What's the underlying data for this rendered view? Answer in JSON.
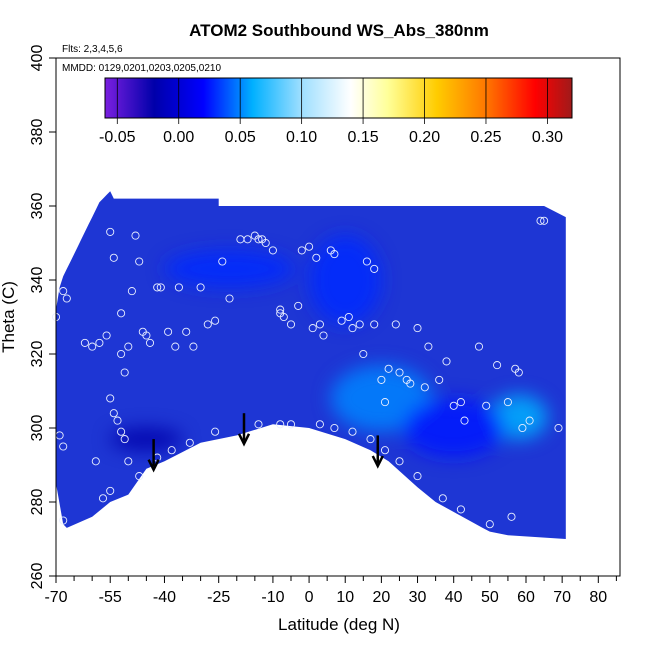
{
  "chart_data": {
    "type": "heatmap",
    "title": "ATOM2 Southbound WS_Abs_380nm",
    "subtitle_flights": "Flts: 2,3,4,5,6",
    "subtitle_dates": "MMDD: 0129,0201,0203,0205,0210",
    "xlabel": "Latitude (deg N)",
    "ylabel": "Theta (C)",
    "xlim": [
      -70,
      86
    ],
    "ylim": [
      260,
      400
    ],
    "x_ticks": [
      -70,
      -55,
      -40,
      -25,
      -10,
      0,
      10,
      20,
      30,
      40,
      50,
      60,
      70,
      80
    ],
    "x_minor_ticks": [
      -65,
      -60,
      -50,
      -45,
      -35,
      -30,
      -20,
      -15,
      -5,
      5,
      15,
      25,
      35,
      45,
      55,
      65,
      75,
      85
    ],
    "y_ticks": [
      260,
      280,
      300,
      320,
      340,
      360,
      380,
      400
    ],
    "colorbar": {
      "range": [
        -0.06,
        0.32
      ],
      "ticks": [
        -0.05,
        0.0,
        0.05,
        0.1,
        0.15,
        0.2,
        0.25,
        0.3
      ],
      "tick_labels": [
        "-0.05",
        "0.00",
        "0.05",
        "0.10",
        "0.15",
        "0.20",
        "0.25",
        "0.30"
      ],
      "stops": [
        {
          "value": -0.06,
          "color": "#7a1fe0"
        },
        {
          "value": -0.02,
          "color": "#0000aa"
        },
        {
          "value": 0.02,
          "color": "#0000ff"
        },
        {
          "value": 0.06,
          "color": "#00b0ff"
        },
        {
          "value": 0.1,
          "color": "#9fdfff"
        },
        {
          "value": 0.14,
          "color": "#ffffff"
        },
        {
          "value": 0.17,
          "color": "#ffff99"
        },
        {
          "value": 0.21,
          "color": "#ffcc00"
        },
        {
          "value": 0.25,
          "color": "#ff7700"
        },
        {
          "value": 0.29,
          "color": "#ff0000"
        },
        {
          "value": 0.32,
          "color": "#a01a1a"
        }
      ]
    },
    "field_background_color": "#1e36d4",
    "field_boundary_top": [
      [
        -70,
        332
      ],
      [
        -69,
        338
      ],
      [
        -68,
        341
      ],
      [
        -67,
        343
      ],
      [
        -66,
        345
      ],
      [
        -65,
        347
      ],
      [
        -64,
        349
      ],
      [
        -63,
        351
      ],
      [
        -62,
        353
      ],
      [
        -61,
        355
      ],
      [
        -60,
        357
      ],
      [
        -59,
        359
      ],
      [
        -58,
        361
      ],
      [
        -57,
        362
      ],
      [
        -56,
        363
      ],
      [
        -55,
        364
      ],
      [
        -54,
        362
      ],
      [
        -50,
        362
      ],
      [
        -25,
        362
      ],
      [
        -25,
        360
      ],
      [
        65,
        360
      ],
      [
        71,
        357
      ]
    ],
    "field_boundary_bottom": [
      [
        71,
        270
      ],
      [
        55,
        271
      ],
      [
        50,
        272
      ],
      [
        48,
        273
      ],
      [
        35,
        280
      ],
      [
        30,
        284
      ],
      [
        22,
        291
      ],
      [
        17,
        294
      ],
      [
        10,
        297
      ],
      [
        0,
        300
      ],
      [
        -10,
        301
      ],
      [
        -20,
        298
      ],
      [
        -30,
        296
      ],
      [
        -40,
        291
      ],
      [
        -45,
        289
      ],
      [
        -50,
        282
      ],
      [
        -55,
        280
      ],
      [
        -60,
        276
      ],
      [
        -67,
        273
      ],
      [
        -68,
        274
      ],
      [
        -70,
        285
      ]
    ],
    "highlights": [
      {
        "lat": 20,
        "theta": 308,
        "rx": 14,
        "ry": 9,
        "value": 0.05
      },
      {
        "lat": 58,
        "theta": 303,
        "rx": 8,
        "ry": 6,
        "value": 0.06
      },
      {
        "lat": -22,
        "theta": 343,
        "rx": 18,
        "ry": 5,
        "value": 0.03
      },
      {
        "lat": 10,
        "theta": 340,
        "rx": 10,
        "ry": 12,
        "value": 0.03
      },
      {
        "lat": 40,
        "theta": 300,
        "rx": 14,
        "ry": 8,
        "value": 0.025
      },
      {
        "lat": -45,
        "theta": 297,
        "rx": 10,
        "ry": 3,
        "value": -0.02
      }
    ],
    "arrows": [
      {
        "lat": -43,
        "theta_top": 297,
        "theta_tip": 289
      },
      {
        "lat": -18,
        "theta_top": 304,
        "theta_tip": 296
      },
      {
        "lat": 19,
        "theta_top": 298,
        "theta_tip": 290
      }
    ],
    "observations": [
      [
        -70,
        330
      ],
      [
        -68,
        337
      ],
      [
        -67,
        335
      ],
      [
        -69,
        298
      ],
      [
        -68,
        295
      ],
      [
        -68,
        275
      ],
      [
        -62,
        323
      ],
      [
        -60,
        322
      ],
      [
        -58,
        323
      ],
      [
        -56,
        325
      ],
      [
        -55,
        353
      ],
      [
        -54,
        346
      ],
      [
        -52,
        331
      ],
      [
        -52,
        320
      ],
      [
        -51,
        315
      ],
      [
        -50,
        322
      ],
      [
        -49,
        337
      ],
      [
        -48,
        352
      ],
      [
        -47,
        345
      ],
      [
        -46,
        326
      ],
      [
        -45,
        325
      ],
      [
        -44,
        323
      ],
      [
        -42,
        338
      ],
      [
        -41,
        338
      ],
      [
        -39,
        326
      ],
      [
        -37,
        322
      ],
      [
        -36,
        338
      ],
      [
        -34,
        326
      ],
      [
        -32,
        322
      ],
      [
        -30,
        338
      ],
      [
        -28,
        328
      ],
      [
        -26,
        329
      ],
      [
        -24,
        345
      ],
      [
        -22,
        335
      ],
      [
        -19,
        351
      ],
      [
        -17,
        351
      ],
      [
        -15,
        352
      ],
      [
        -14,
        351
      ],
      [
        -13,
        351
      ],
      [
        -12,
        350
      ],
      [
        -10,
        348
      ],
      [
        -8,
        332
      ],
      [
        -8,
        331
      ],
      [
        -7,
        330
      ],
      [
        -5,
        328
      ],
      [
        -3,
        333
      ],
      [
        -2,
        348
      ],
      [
        0,
        349
      ],
      [
        1,
        327
      ],
      [
        2,
        346
      ],
      [
        3,
        328
      ],
      [
        4,
        325
      ],
      [
        6,
        348
      ],
      [
        7,
        347
      ],
      [
        9,
        329
      ],
      [
        11,
        330
      ],
      [
        12,
        327
      ],
      [
        14,
        328
      ],
      [
        15,
        320
      ],
      [
        16,
        345
      ],
      [
        18,
        343
      ],
      [
        18,
        328
      ],
      [
        20,
        313
      ],
      [
        21,
        307
      ],
      [
        22,
        316
      ],
      [
        24,
        328
      ],
      [
        25,
        315
      ],
      [
        27,
        313
      ],
      [
        28,
        312
      ],
      [
        30,
        327
      ],
      [
        32,
        311
      ],
      [
        33,
        322
      ],
      [
        36,
        313
      ],
      [
        38,
        318
      ],
      [
        40,
        306
      ],
      [
        42,
        307
      ],
      [
        43,
        302
      ],
      [
        47,
        322
      ],
      [
        49,
        306
      ],
      [
        52,
        317
      ],
      [
        55,
        307
      ],
      [
        57,
        316
      ],
      [
        58,
        315
      ],
      [
        59,
        300
      ],
      [
        61,
        302
      ],
      [
        64,
        356
      ],
      [
        65,
        356
      ],
      [
        69,
        300
      ],
      [
        -55,
        308
      ],
      [
        -54,
        304
      ],
      [
        -53,
        302
      ],
      [
        -52,
        299
      ],
      [
        -51,
        297
      ],
      [
        -50,
        291
      ],
      [
        -47,
        287
      ],
      [
        -42,
        292
      ],
      [
        -38,
        294
      ],
      [
        -33,
        296
      ],
      [
        -26,
        299
      ],
      [
        -14,
        301
      ],
      [
        -8,
        301
      ],
      [
        -5,
        301
      ],
      [
        3,
        301
      ],
      [
        7,
        300
      ],
      [
        12,
        299
      ],
      [
        17,
        297
      ],
      [
        21,
        294
      ],
      [
        25,
        291
      ],
      [
        30,
        287
      ],
      [
        37,
        281
      ],
      [
        42,
        278
      ],
      [
        50,
        274
      ],
      [
        56,
        276
      ],
      [
        -57,
        281
      ],
      [
        -55,
        283
      ],
      [
        -59,
        291
      ]
    ]
  }
}
